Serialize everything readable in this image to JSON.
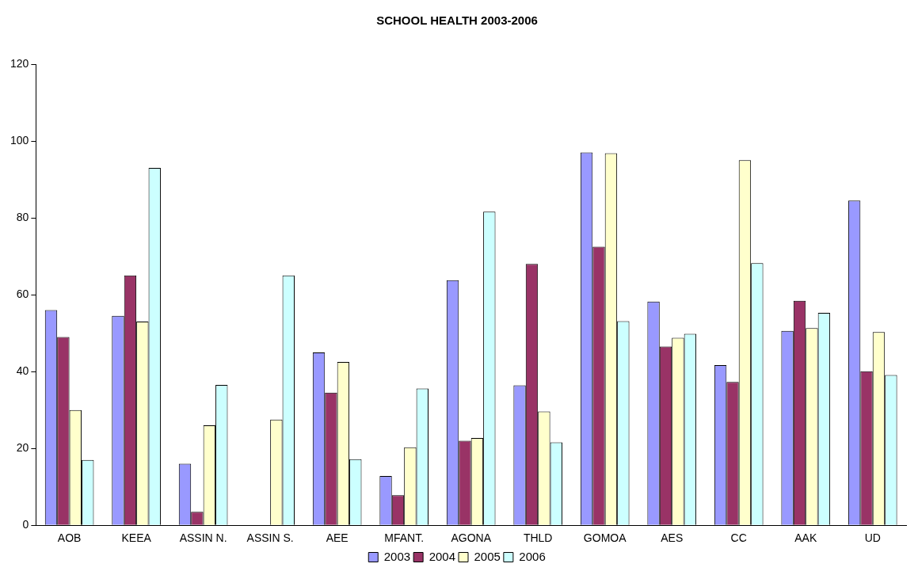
{
  "chart_data": {
    "type": "bar",
    "title": "SCHOOL HEALTH 2003-2006",
    "categories": [
      "AOB",
      "KEEA",
      "ASSIN N.",
      "ASSIN S.",
      "AEE",
      "MFANT.",
      "AGONA",
      "THLD",
      "GOMOA",
      "AES",
      "CC",
      "AAK",
      "UD"
    ],
    "series": [
      {
        "name": "2003",
        "color": "#9999ff",
        "values": [
          56,
          54.5,
          16,
          null,
          45,
          12.8,
          63.8,
          36.4,
          97,
          58.2,
          41.7,
          50.6,
          84.5
        ]
      },
      {
        "name": "2004",
        "color": "#993366",
        "values": [
          49,
          65,
          3.5,
          null,
          34.5,
          7.8,
          22,
          68,
          72.5,
          46.5,
          37.3,
          58.4,
          40.1
        ]
      },
      {
        "name": "2005",
        "color": "#ffffcc",
        "values": [
          30,
          53,
          26,
          27.5,
          42.5,
          20.3,
          22.7,
          29.6,
          96.8,
          48.8,
          95,
          51.3,
          50.3
        ]
      },
      {
        "name": "2006",
        "color": "#ccffff",
        "values": [
          17,
          93,
          36.5,
          65,
          17.2,
          35.6,
          81.6,
          21.6,
          53.1,
          49.8,
          68.2,
          55.3,
          39.1
        ]
      }
    ],
    "ylim": [
      0,
      120
    ],
    "yticks": [
      0,
      20,
      40,
      60,
      80,
      100,
      120
    ],
    "grid": false,
    "legend": "bottom"
  }
}
